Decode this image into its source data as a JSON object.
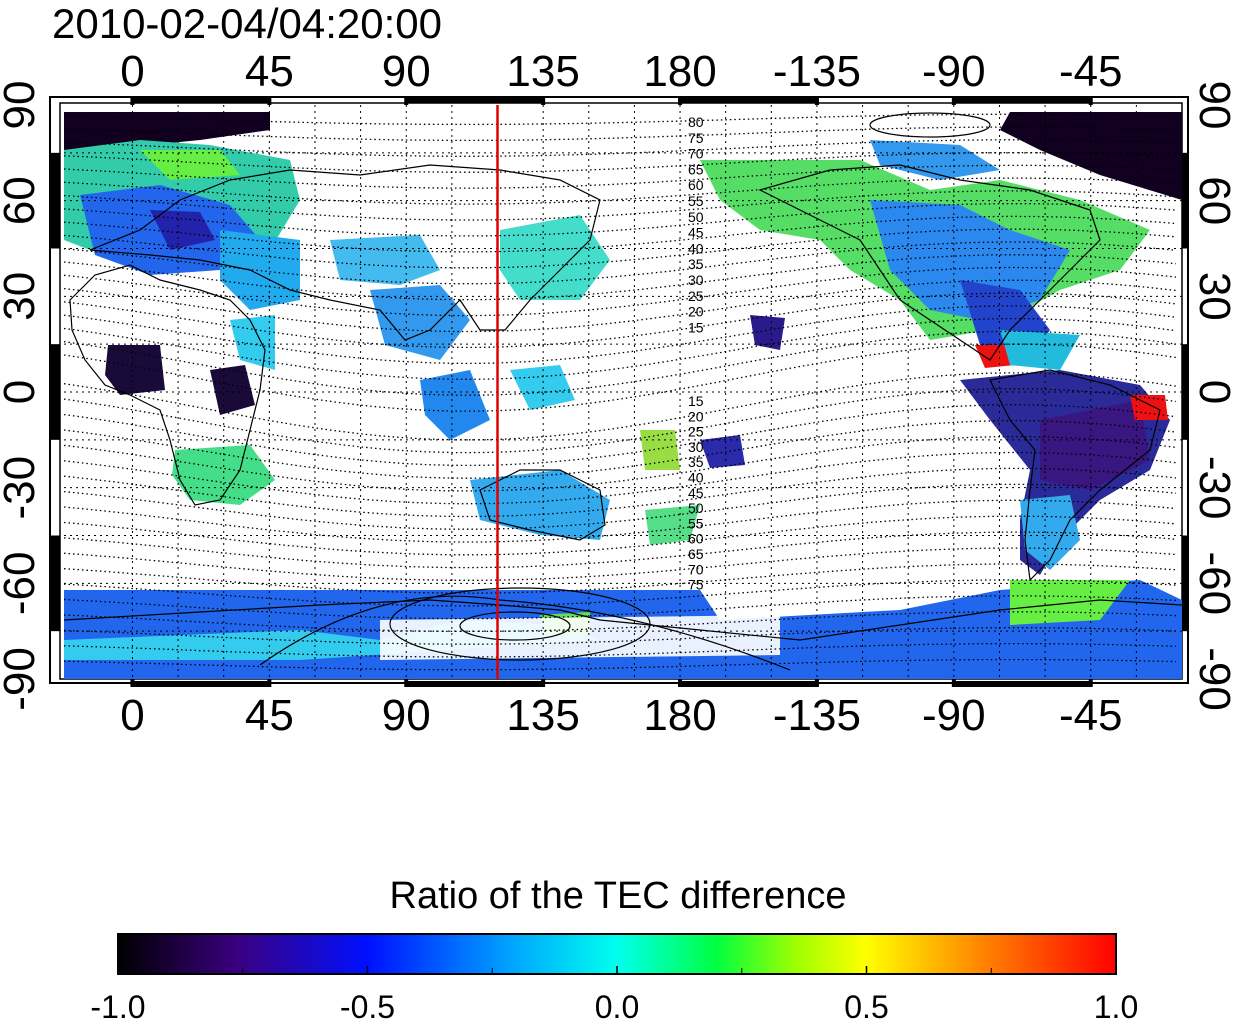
{
  "title": "2010-02-04/04:20:00",
  "x_ticks_top": [
    "0",
    "45",
    "90",
    "135",
    "180",
    "-135",
    "-90",
    "-45"
  ],
  "x_ticks_bottom": [
    "0",
    "45",
    "90",
    "135",
    "180",
    "-135",
    "-90",
    "-45"
  ],
  "y_ticks_left": [
    "90",
    "60",
    "30",
    "0",
    "-30",
    "-60",
    "-90"
  ],
  "y_ticks_right": [
    "90",
    "60",
    "30",
    "0",
    "-30",
    "-60",
    "-90"
  ],
  "dip_labels_north": [
    "80",
    "75",
    "70",
    "65",
    "60",
    "55",
    "50",
    "45",
    "40",
    "35",
    "30",
    "25",
    "20",
    "15"
  ],
  "dip_labels_south": [
    "15",
    "20",
    "25",
    "30",
    "35",
    "40",
    "45",
    "50",
    "55",
    "60",
    "65",
    "70",
    "75"
  ],
  "marker_longitude": 120,
  "colorbar": {
    "title": "Ratio of the TEC difference",
    "ticks": [
      "-1.0",
      "-0.5",
      "0.0",
      "0.5",
      "1.0"
    ],
    "range": [
      -1.0,
      1.0
    ],
    "colors": [
      "#000000",
      "#3a0080",
      "#0010ff",
      "#00aaff",
      "#00ffee",
      "#00ff40",
      "#a0ff00",
      "#ffff00",
      "#ff8000",
      "#ff0000"
    ]
  },
  "colors": {
    "marker": "#e00000",
    "grid": "#000000",
    "coast": "#000000"
  }
}
